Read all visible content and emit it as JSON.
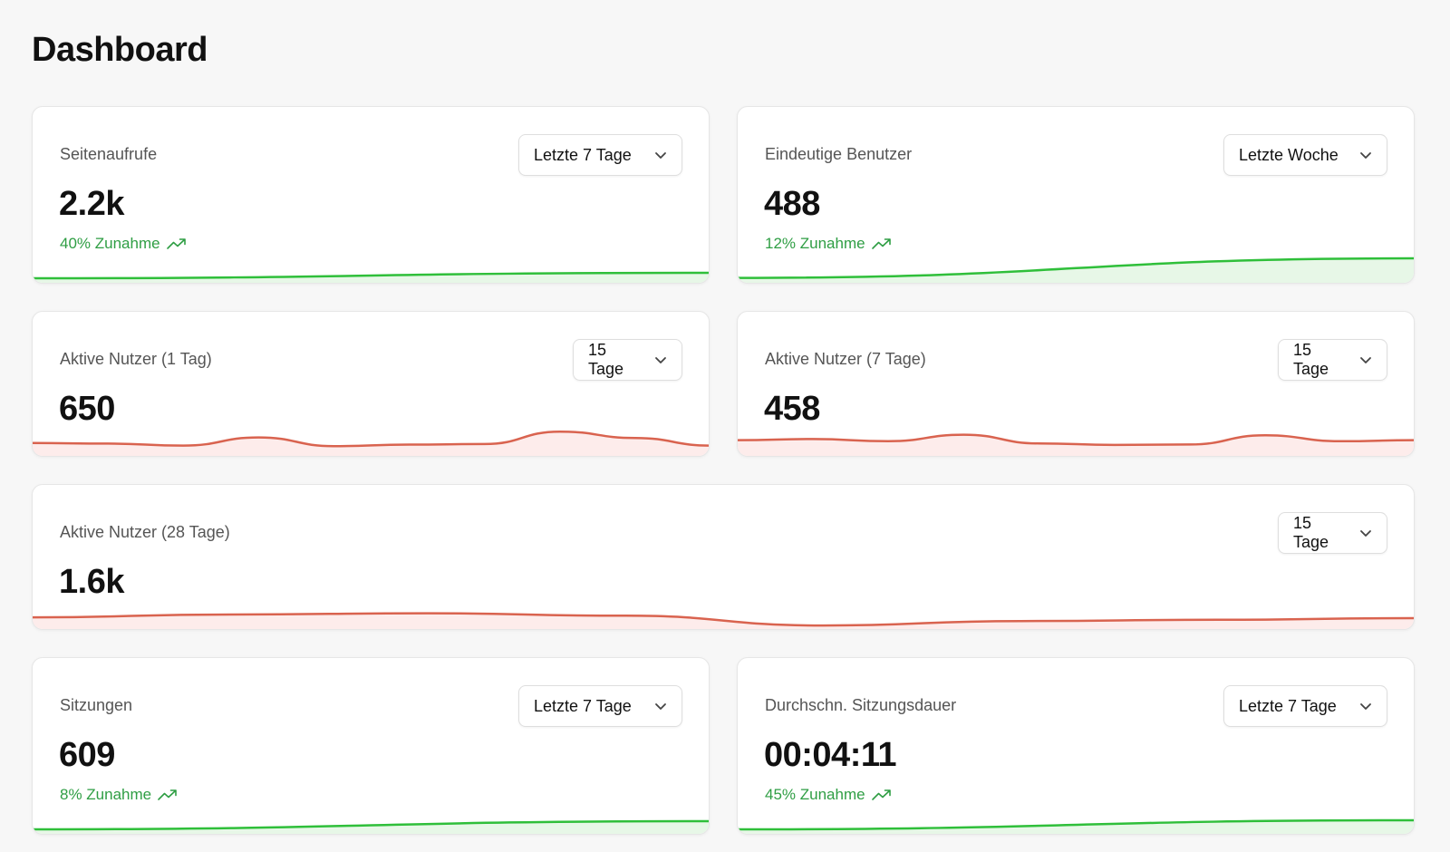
{
  "page": {
    "title": "Dashboard"
  },
  "colors": {
    "up": "#2fbf3a",
    "up_fill": "#e7f7e7",
    "down": "#d9634f",
    "down_fill": "#fdeceb",
    "trend_text": "#2f9e44"
  },
  "cards": [
    {
      "label": "Seitenaufrufe",
      "value": "2.2k",
      "trend": "40% Zunahme",
      "range": "Letzte 7 Tage",
      "trend_dir": "up",
      "series": [
        0.1,
        0.4
      ]
    },
    {
      "label": "Eindeutige Benutzer",
      "value": "488",
      "trend": "12% Zunahme",
      "range": "Letzte Woche",
      "trend_dir": "up",
      "series": [
        0.1,
        1.0
      ]
    },
    {
      "label": "Aktive Nutzer (1 Tag)",
      "value": "650",
      "range": "15 Tage",
      "trend_dir": "down",
      "series": [
        0.4,
        0.38,
        0.3,
        0.62,
        0.28,
        0.34,
        0.36,
        0.85,
        0.6,
        0.3
      ]
    },
    {
      "label": "Aktive Nutzer (7 Tage)",
      "value": "458",
      "range": "15 Tage",
      "trend_dir": "down",
      "series": [
        0.6,
        0.65,
        0.55,
        0.85,
        0.45,
        0.38,
        0.4,
        0.82,
        0.55,
        0.6
      ]
    },
    {
      "label": "Aktive Nutzer (28 Tage)",
      "value": "1.6k",
      "range": "15 Tage",
      "trend_dir": "down",
      "series": [
        0.55,
        0.72,
        0.8,
        0.65,
        0.05,
        0.32,
        0.4,
        0.5
      ]
    },
    {
      "label": "Sitzungen",
      "value": "609",
      "trend": "8% Zunahme",
      "range": "Letzte 7 Tage",
      "trend_dir": "up",
      "series": [
        0.1,
        0.55
      ]
    },
    {
      "label": "Durchschn. Sitzungsdauer",
      "value": "00:04:11",
      "trend": "45% Zunahme",
      "range": "Letzte 7 Tage",
      "trend_dir": "up",
      "series": [
        0.1,
        0.6
      ]
    }
  ]
}
